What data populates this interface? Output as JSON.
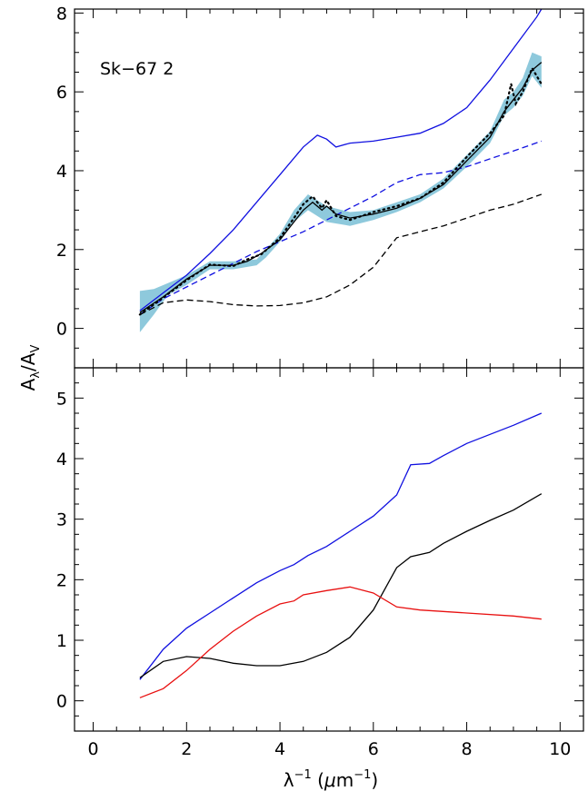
{
  "chart_data": [
    {
      "panel": "top",
      "type": "line",
      "annotation": "Sk−67 2",
      "xlim": [
        -0.4,
        10.5
      ],
      "ylim": [
        -1,
        8.1
      ],
      "yticks": [
        0,
        2,
        4,
        6,
        8
      ],
      "ytick_labels": [
        "0",
        "2",
        "4",
        "6",
        "8"
      ],
      "band": {
        "color": "#8ec9dc",
        "x": [
          1.0,
          1.3,
          1.6,
          2.0,
          2.5,
          3.0,
          3.5,
          3.7,
          4.0,
          4.3,
          4.6,
          5.0,
          5.5,
          6.0,
          6.5,
          7.0,
          7.5,
          8.0,
          8.5,
          8.8,
          9.0,
          9.2,
          9.4,
          9.6
        ],
        "upper": [
          0.95,
          1.0,
          1.15,
          1.35,
          1.7,
          1.7,
          1.75,
          2.0,
          2.4,
          3.0,
          3.4,
          3.1,
          2.95,
          3.0,
          3.2,
          3.4,
          3.8,
          4.4,
          5.0,
          5.8,
          6.0,
          6.35,
          7.0,
          6.9
        ],
        "lower": [
          -0.1,
          0.35,
          0.85,
          1.1,
          1.5,
          1.5,
          1.6,
          1.8,
          2.2,
          2.7,
          3.0,
          2.7,
          2.6,
          2.75,
          2.95,
          3.2,
          3.55,
          4.1,
          4.7,
          5.4,
          5.6,
          5.9,
          6.4,
          6.1
        ]
      },
      "series": [
        {
          "color": "#1010e0",
          "dash": "solid",
          "x": [
            1.0,
            1.5,
            2.0,
            2.5,
            3.0,
            3.5,
            4.0,
            4.5,
            4.8,
            5.0,
            5.2,
            5.5,
            6.0,
            6.5,
            7.0,
            7.5,
            8.0,
            8.5,
            9.0,
            9.5,
            9.6
          ],
          "values": [
            0.45,
            0.9,
            1.35,
            1.9,
            2.5,
            3.2,
            3.9,
            4.6,
            4.9,
            4.8,
            4.6,
            4.7,
            4.75,
            4.85,
            4.95,
            5.2,
            5.6,
            6.3,
            7.1,
            7.9,
            8.1
          ]
        },
        {
          "color": "#1010e0",
          "dash": "dash",
          "x": [
            1.0,
            1.5,
            2.0,
            2.5,
            3.0,
            3.5,
            4.0,
            4.5,
            5.0,
            5.5,
            6.0,
            6.5,
            7.0,
            7.5,
            8.0,
            8.5,
            9.0,
            9.6
          ],
          "values": [
            0.35,
            0.75,
            1.05,
            1.35,
            1.65,
            1.95,
            2.2,
            2.45,
            2.75,
            3.05,
            3.35,
            3.7,
            3.9,
            3.95,
            4.1,
            4.3,
            4.5,
            4.75
          ]
        },
        {
          "color": "#000000",
          "dash": "dash",
          "x": [
            1.0,
            1.5,
            2.0,
            2.5,
            3.0,
            3.5,
            4.0,
            4.5,
            5.0,
            5.5,
            6.0,
            6.5,
            7.0,
            7.5,
            8.0,
            8.5,
            9.0,
            9.6
          ],
          "values": [
            0.35,
            0.65,
            0.72,
            0.68,
            0.6,
            0.57,
            0.58,
            0.65,
            0.8,
            1.1,
            1.55,
            2.3,
            2.45,
            2.6,
            2.8,
            3.0,
            3.15,
            3.4
          ]
        },
        {
          "color": "#000000",
          "dash": "solid",
          "x": [
            1.0,
            1.5,
            2.0,
            2.5,
            3.0,
            3.3,
            3.6,
            4.0,
            4.3,
            4.5,
            4.7,
            4.9,
            5.0,
            5.2,
            5.5,
            6.0,
            6.5,
            7.0,
            7.5,
            8.0,
            8.5,
            8.8,
            9.0,
            9.2,
            9.4,
            9.6
          ],
          "values": [
            0.4,
            0.8,
            1.25,
            1.6,
            1.6,
            1.7,
            1.9,
            2.25,
            2.7,
            3.0,
            3.2,
            3.0,
            3.1,
            2.9,
            2.8,
            2.9,
            3.05,
            3.3,
            3.65,
            4.25,
            4.85,
            5.5,
            5.8,
            6.1,
            6.55,
            6.75
          ]
        },
        {
          "color": "#000000",
          "dash": "dot",
          "x": [
            1.0,
            1.5,
            2.0,
            2.5,
            3.0,
            3.3,
            3.6,
            4.0,
            4.3,
            4.5,
            4.7,
            4.9,
            5.0,
            5.2,
            5.5,
            6.0,
            6.5,
            7.0,
            7.5,
            8.0,
            8.5,
            8.8,
            8.95,
            9.05,
            9.2,
            9.4,
            9.6
          ],
          "values": [
            0.35,
            0.78,
            1.22,
            1.62,
            1.58,
            1.75,
            1.88,
            2.3,
            2.8,
            3.15,
            3.35,
            3.05,
            3.25,
            2.85,
            2.75,
            2.95,
            3.1,
            3.3,
            3.7,
            4.35,
            4.95,
            5.4,
            6.2,
            5.7,
            6.0,
            6.6,
            6.2
          ]
        }
      ]
    },
    {
      "panel": "bottom",
      "type": "line",
      "xlim": [
        -0.4,
        10.5
      ],
      "ylim": [
        -0.5,
        5.5
      ],
      "yticks": [
        0,
        1,
        2,
        3,
        4,
        5
      ],
      "ytick_labels": [
        "0",
        "1",
        "2",
        "3",
        "4",
        "5"
      ],
      "xticks": [
        0,
        2,
        4,
        6,
        8,
        10
      ],
      "xtick_labels": [
        "0",
        "2",
        "4",
        "6",
        "8",
        "10"
      ],
      "series": [
        {
          "color": "#1010e0",
          "x": [
            1.0,
            1.5,
            2.0,
            2.5,
            3.0,
            3.5,
            4.0,
            4.3,
            4.6,
            5.0,
            5.5,
            6.0,
            6.5,
            6.8,
            7.2,
            7.5,
            8.0,
            8.5,
            9.0,
            9.6
          ],
          "values": [
            0.35,
            0.85,
            1.2,
            1.45,
            1.7,
            1.95,
            2.15,
            2.25,
            2.4,
            2.55,
            2.8,
            3.05,
            3.4,
            3.9,
            3.92,
            4.05,
            4.25,
            4.4,
            4.55,
            4.75
          ]
        },
        {
          "color": "#000000",
          "x": [
            1.0,
            1.5,
            2.0,
            2.5,
            3.0,
            3.5,
            4.0,
            4.5,
            5.0,
            5.5,
            6.0,
            6.5,
            6.8,
            7.2,
            7.5,
            8.0,
            8.5,
            9.0,
            9.6
          ],
          "values": [
            0.38,
            0.65,
            0.73,
            0.7,
            0.62,
            0.58,
            0.58,
            0.65,
            0.8,
            1.05,
            1.5,
            2.2,
            2.38,
            2.45,
            2.6,
            2.8,
            2.98,
            3.15,
            3.42
          ]
        },
        {
          "color": "#e81010",
          "x": [
            1.0,
            1.5,
            2.0,
            2.5,
            3.0,
            3.5,
            4.0,
            4.3,
            4.5,
            5.0,
            5.5,
            6.0,
            6.5,
            7.0,
            8.0,
            9.0,
            9.6
          ],
          "values": [
            0.05,
            0.2,
            0.5,
            0.85,
            1.15,
            1.4,
            1.6,
            1.65,
            1.75,
            1.82,
            1.88,
            1.78,
            1.55,
            1.5,
            1.45,
            1.4,
            1.35
          ]
        }
      ]
    }
  ],
  "ylabel_main": "A",
  "ylabel_sub": "λ",
  "ylabel_div": "/A",
  "ylabel_sub2": "V",
  "xlabel_main": "λ",
  "xlabel_exp": "−1",
  "xlabel_unit_open": " (",
  "xlabel_mu": "μ",
  "xlabel_m": "m",
  "xlabel_unit_close": ")"
}
